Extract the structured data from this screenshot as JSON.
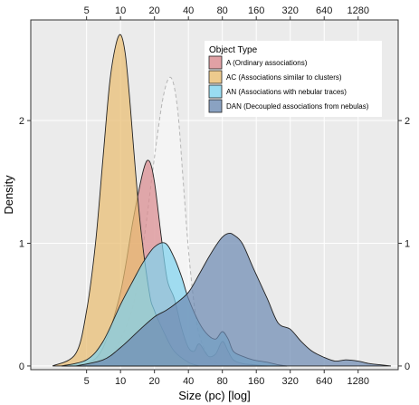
{
  "chart_data": {
    "type": "area",
    "xlabel": "Size (pc) [log]",
    "ylabel": "Density",
    "x_scale": "log2",
    "xlim": [
      1.6,
      2900
    ],
    "ylim": [
      -0.03,
      2.82
    ],
    "x_ticks": [
      5,
      10,
      20,
      40,
      80,
      160,
      320,
      640,
      1280
    ],
    "y_ticks": [
      0,
      1,
      2
    ],
    "legend": {
      "title": "Object Type",
      "position": "top-right"
    },
    "series": [
      {
        "name": "A (Ordinary associations)",
        "color": "#d98a8f",
        "x": [
          3,
          5,
          7,
          10,
          13,
          16,
          18,
          20,
          23,
          26,
          30,
          35,
          40,
          45,
          50,
          60,
          70,
          80,
          90,
          100,
          120,
          150,
          200
        ],
        "values": [
          0,
          0.02,
          0.15,
          0.6,
          1.2,
          1.6,
          1.67,
          1.5,
          1.05,
          0.7,
          0.55,
          0.3,
          0.15,
          0.12,
          0.18,
          0.08,
          0.1,
          0.2,
          0.12,
          0.05,
          0.02,
          0.01,
          0
        ]
      },
      {
        "name": "AC (Associations similar to clusters)",
        "color": "#e9bd70",
        "x": [
          2.5,
          4,
          5,
          6,
          7,
          8,
          9,
          10,
          11,
          12,
          13,
          15,
          18,
          20,
          25,
          30,
          40,
          50
        ],
        "values": [
          0,
          0.1,
          0.45,
          1.0,
          1.7,
          2.3,
          2.6,
          2.7,
          2.55,
          2.2,
          1.8,
          1.15,
          0.6,
          0.45,
          0.25,
          0.12,
          0.03,
          0
        ]
      },
      {
        "name": "AN (Associations with nebular traces)",
        "color": "#7fd3ee",
        "x": [
          3,
          5,
          7,
          10,
          13,
          16,
          20,
          25,
          30,
          35,
          40,
          50,
          60,
          70,
          80,
          90,
          100,
          120,
          150,
          200,
          250,
          300
        ],
        "values": [
          0,
          0.05,
          0.2,
          0.5,
          0.7,
          0.85,
          0.97,
          1.0,
          0.88,
          0.72,
          0.55,
          0.35,
          0.25,
          0.22,
          0.28,
          0.22,
          0.12,
          0.08,
          0.05,
          0.03,
          0.01,
          0
        ]
      },
      {
        "name": "DAN (Decoupled associations from nebulas)",
        "color": "#6d8bb3",
        "x": [
          4,
          7,
          10,
          15,
          20,
          25,
          30,
          40,
          50,
          60,
          70,
          80,
          90,
          100,
          120,
          150,
          200,
          250,
          320,
          400,
          500,
          640,
          800,
          1000,
          1280,
          1600,
          2000,
          2500
        ],
        "values": [
          0,
          0.05,
          0.15,
          0.3,
          0.4,
          0.45,
          0.5,
          0.6,
          0.75,
          0.88,
          0.98,
          1.05,
          1.08,
          1.07,
          1.0,
          0.8,
          0.55,
          0.35,
          0.3,
          0.2,
          0.12,
          0.07,
          0.04,
          0.05,
          0.04,
          0.02,
          0.01,
          0
        ]
      }
    ],
    "reference_curve": {
      "style": "dashed",
      "color": "#cccccc",
      "x": [
        3,
        5,
        8,
        10,
        13,
        16,
        20,
        24,
        28,
        32,
        36,
        40,
        45,
        50,
        60,
        70,
        80,
        100
      ],
      "values": [
        0,
        0.02,
        0.1,
        0.22,
        0.5,
        1.0,
        1.7,
        2.2,
        2.35,
        2.1,
        1.5,
        0.95,
        0.5,
        0.25,
        0.08,
        0.03,
        0.01,
        0
      ]
    }
  }
}
